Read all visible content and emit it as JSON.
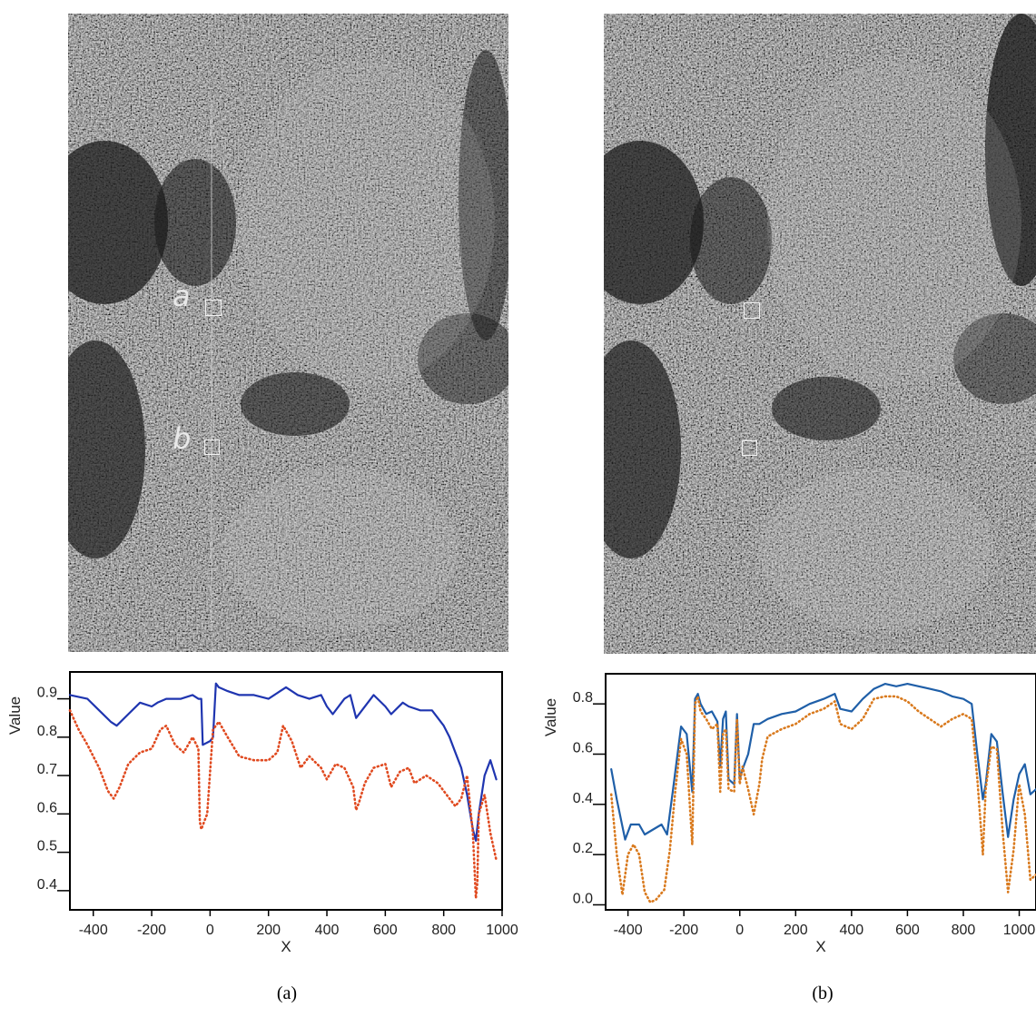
{
  "panels": [
    {
      "caption": "(a)",
      "image_labels": [
        "a",
        "b"
      ],
      "marker_color": "#ffffff"
    },
    {
      "caption": "(b)",
      "image_labels": [],
      "marker_color": "#ffffff"
    }
  ],
  "chart_data": [
    {
      "type": "line",
      "xlabel": "X",
      "ylabel": "Value",
      "xlim": [
        -480,
        1000
      ],
      "ylim": [
        0.35,
        0.97
      ],
      "xticks": [
        -400,
        -200,
        0,
        200,
        400,
        600,
        800,
        1000
      ],
      "xtick_labels": [
        "-400",
        "-200",
        "0",
        "200",
        "400",
        "600",
        "800",
        "1000"
      ],
      "yticks": [
        0.4,
        0.5,
        0.6,
        0.7,
        0.8,
        0.9
      ],
      "ytick_labels": [
        "0.4",
        "0.5",
        "0.6",
        "0.7",
        "0.8",
        "0.9"
      ],
      "series": [
        {
          "color": "#1f35b0",
          "style": "solid",
          "x": [
            -480,
            -420,
            -380,
            -340,
            -320,
            -280,
            -240,
            -200,
            -180,
            -150,
            -100,
            -60,
            -40,
            -30,
            -25,
            0,
            10,
            20,
            30,
            60,
            100,
            150,
            200,
            240,
            260,
            300,
            340,
            380,
            400,
            420,
            460,
            480,
            500,
            520,
            560,
            600,
            620,
            660,
            680,
            720,
            760,
            800,
            820,
            840,
            860,
            880,
            900,
            910,
            920,
            940,
            960,
            980
          ],
          "values": [
            0.91,
            0.9,
            0.87,
            0.84,
            0.83,
            0.86,
            0.89,
            0.88,
            0.89,
            0.9,
            0.9,
            0.91,
            0.9,
            0.9,
            0.78,
            0.79,
            0.8,
            0.94,
            0.93,
            0.92,
            0.91,
            0.91,
            0.9,
            0.92,
            0.93,
            0.91,
            0.9,
            0.91,
            0.88,
            0.86,
            0.9,
            0.91,
            0.85,
            0.87,
            0.91,
            0.88,
            0.86,
            0.89,
            0.88,
            0.87,
            0.87,
            0.83,
            0.8,
            0.76,
            0.72,
            0.65,
            0.56,
            0.53,
            0.6,
            0.7,
            0.74,
            0.69
          ]
        },
        {
          "color": "#e04a20",
          "style": "dotted",
          "x": [
            -480,
            -450,
            -420,
            -380,
            -350,
            -330,
            -310,
            -280,
            -240,
            -200,
            -170,
            -150,
            -120,
            -90,
            -60,
            -40,
            -35,
            -30,
            -20,
            -10,
            10,
            30,
            60,
            100,
            150,
            200,
            230,
            250,
            280,
            310,
            340,
            380,
            400,
            430,
            460,
            490,
            500,
            510,
            530,
            560,
            600,
            620,
            650,
            680,
            700,
            740,
            780,
            820,
            840,
            860,
            880,
            900,
            910,
            915,
            920,
            940,
            960,
            980
          ],
          "values": [
            0.87,
            0.82,
            0.78,
            0.72,
            0.66,
            0.64,
            0.67,
            0.73,
            0.76,
            0.77,
            0.82,
            0.83,
            0.78,
            0.76,
            0.8,
            0.77,
            0.58,
            0.56,
            0.58,
            0.6,
            0.82,
            0.84,
            0.8,
            0.75,
            0.74,
            0.74,
            0.76,
            0.83,
            0.79,
            0.72,
            0.75,
            0.72,
            0.69,
            0.73,
            0.72,
            0.67,
            0.61,
            0.63,
            0.68,
            0.72,
            0.73,
            0.67,
            0.71,
            0.72,
            0.68,
            0.7,
            0.68,
            0.64,
            0.62,
            0.64,
            0.7,
            0.55,
            0.38,
            0.42,
            0.6,
            0.65,
            0.55,
            0.48
          ]
        }
      ]
    },
    {
      "type": "line",
      "xlabel": "X",
      "ylabel": "Value",
      "xlim": [
        -480,
        1060
      ],
      "ylim": [
        -0.02,
        0.92
      ],
      "xticks": [
        -400,
        -200,
        0,
        200,
        400,
        600,
        800,
        1000
      ],
      "xtick_labels": [
        "-400",
        "-200",
        "0",
        "200",
        "400",
        "600",
        "800",
        "1000"
      ],
      "yticks": [
        0.0,
        0.2,
        0.4,
        0.6,
        0.8
      ],
      "ytick_labels": [
        "0.0",
        "0.2",
        "0.4",
        "0.6",
        "0.8"
      ],
      "series": [
        {
          "color": "#1f5fa8",
          "style": "solid",
          "x": [
            -460,
            -440,
            -410,
            -390,
            -360,
            -340,
            -310,
            -280,
            -260,
            -240,
            -210,
            -190,
            -170,
            -160,
            -150,
            -140,
            -120,
            -100,
            -80,
            -70,
            -60,
            -50,
            -40,
            -20,
            -10,
            0,
            10,
            30,
            50,
            70,
            100,
            150,
            200,
            250,
            300,
            340,
            360,
            400,
            440,
            480,
            520,
            560,
            600,
            640,
            680,
            720,
            760,
            800,
            830,
            850,
            870,
            880,
            900,
            920,
            940,
            960,
            980,
            1000,
            1020,
            1040,
            1060
          ],
          "values": [
            0.54,
            0.42,
            0.26,
            0.32,
            0.32,
            0.28,
            0.3,
            0.32,
            0.28,
            0.45,
            0.71,
            0.68,
            0.45,
            0.82,
            0.84,
            0.8,
            0.76,
            0.77,
            0.73,
            0.55,
            0.74,
            0.77,
            0.5,
            0.48,
            0.76,
            0.5,
            0.54,
            0.6,
            0.72,
            0.72,
            0.74,
            0.76,
            0.77,
            0.8,
            0.82,
            0.84,
            0.78,
            0.77,
            0.82,
            0.86,
            0.88,
            0.87,
            0.88,
            0.87,
            0.86,
            0.85,
            0.83,
            0.82,
            0.8,
            0.6,
            0.42,
            0.48,
            0.68,
            0.65,
            0.45,
            0.27,
            0.42,
            0.52,
            0.56,
            0.44,
            0.46
          ]
        },
        {
          "color": "#d97a1e",
          "style": "dotted",
          "x": [
            -460,
            -440,
            -420,
            -400,
            -380,
            -360,
            -340,
            -320,
            -300,
            -270,
            -250,
            -230,
            -210,
            -190,
            -170,
            -160,
            -150,
            -140,
            -120,
            -100,
            -80,
            -70,
            -60,
            -50,
            -40,
            -20,
            -10,
            0,
            10,
            30,
            50,
            70,
            80,
            100,
            150,
            200,
            250,
            300,
            340,
            360,
            400,
            440,
            480,
            520,
            560,
            600,
            640,
            680,
            720,
            760,
            800,
            830,
            850,
            870,
            880,
            900,
            920,
            940,
            960,
            980,
            1000,
            1020,
            1040,
            1060
          ],
          "values": [
            0.44,
            0.2,
            0.04,
            0.2,
            0.24,
            0.2,
            0.05,
            0.01,
            0.02,
            0.06,
            0.22,
            0.46,
            0.66,
            0.6,
            0.24,
            0.8,
            0.83,
            0.77,
            0.74,
            0.7,
            0.72,
            0.45,
            0.68,
            0.7,
            0.46,
            0.45,
            0.74,
            0.48,
            0.55,
            0.46,
            0.36,
            0.48,
            0.58,
            0.67,
            0.7,
            0.72,
            0.76,
            0.78,
            0.81,
            0.72,
            0.7,
            0.74,
            0.82,
            0.83,
            0.83,
            0.81,
            0.77,
            0.74,
            0.71,
            0.74,
            0.76,
            0.74,
            0.5,
            0.2,
            0.46,
            0.63,
            0.62,
            0.3,
            0.05,
            0.22,
            0.48,
            0.36,
            0.1,
            0.12
          ]
        }
      ]
    }
  ]
}
